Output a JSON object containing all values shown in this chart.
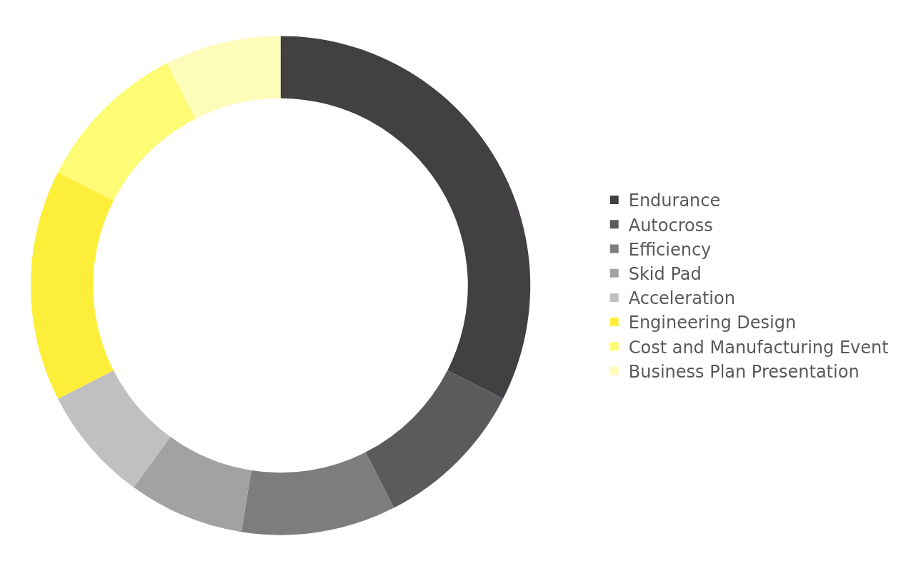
{
  "chart_data": {
    "type": "donut",
    "categories": [
      "Endurance",
      "Autocross",
      "Efficiency",
      "Skid Pad",
      "Acceleration",
      "Engineering Design",
      "Cost and Manufacturing Event",
      "Business Plan Presentation"
    ],
    "values": [
      32.5,
      10,
      10,
      7.5,
      7.5,
      15,
      10,
      7.5
    ],
    "colors": [
      "#434043",
      "#5b5a5d",
      "#7f7c7f",
      "#a3a1a3",
      "#c1bfc1",
      "#fdee3a",
      "#fefb74",
      "#fefcb9"
    ],
    "legend": "right"
  }
}
